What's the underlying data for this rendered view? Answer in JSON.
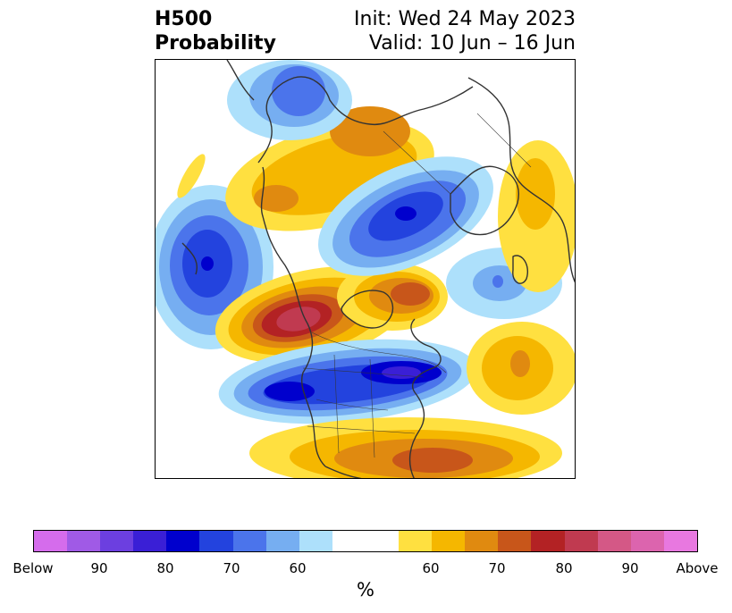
{
  "title": {
    "left_line1": "H500",
    "left_line2": "Probability",
    "init": "Init: Wed 24 May 2023",
    "valid": "Valid: 10 Jun – 16 Jun"
  },
  "map": {
    "projection": "polar stereographic (North America / Arctic)",
    "anomalies": [
      {
        "region": "Western North America / Pacific Northwest",
        "category": "Above",
        "peak": "80-90"
      },
      {
        "region": "Central-Eastern Canada / Hudson Bay",
        "category": "Above",
        "peak": "70"
      },
      {
        "region": "Southern/Eastern United States",
        "category": "Above",
        "peak": "70"
      },
      {
        "region": "Greenland / North Atlantic",
        "category": "Above",
        "peak": "60"
      },
      {
        "region": "Alaska / Bering Sea",
        "category": "Above",
        "peak": "60-70"
      },
      {
        "region": "Scandinavia / Northern Europe",
        "category": "Above",
        "peak": "60-70"
      },
      {
        "region": "Central Atlantic",
        "category": "Above",
        "peak": "70"
      },
      {
        "region": "Northeast Pacific (Gulf of Alaska)",
        "category": "Below",
        "peak": "80"
      },
      {
        "region": "Northern United States / Great Lakes",
        "category": "Below",
        "peak": "80-90"
      },
      {
        "region": "Labrador Sea",
        "category": "Below",
        "peak": "80"
      },
      {
        "region": "Arctic / Siberia",
        "category": "Below",
        "peak": "90"
      },
      {
        "region": "Eastern Siberia / Far East",
        "category": "Below",
        "peak": "70"
      }
    ]
  },
  "colorbar": {
    "colors": [
      "#d56cec",
      "#a05ae6",
      "#6c3fe0",
      "#3a1fd6",
      "#0000cd",
      "#2343de",
      "#4b74eb",
      "#76aef1",
      "#ade0fb",
      "#ffffff",
      "#ffffff",
      "#ffe040",
      "#f5b700",
      "#e08a10",
      "#c8561a",
      "#b32224",
      "#c03a50",
      "#d45886",
      "#dc64ae",
      "#e878e0"
    ],
    "tick_labels": [
      "Below",
      "90",
      "80",
      "70",
      "60",
      "60",
      "70",
      "80",
      "90",
      "Above"
    ],
    "unit": "%"
  }
}
